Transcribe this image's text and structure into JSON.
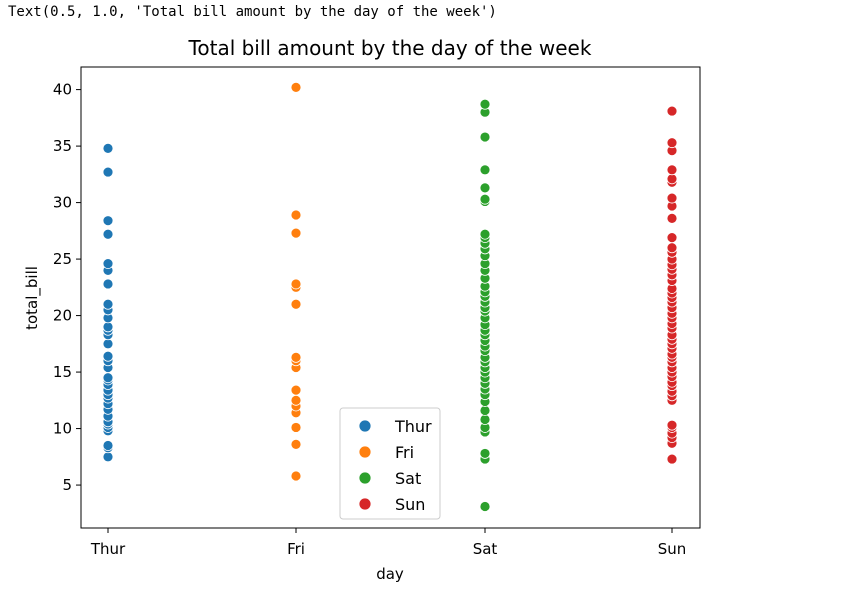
{
  "output_text": "Text(0.5, 1.0, 'Total bill amount by the day of the week')",
  "chart_data": {
    "type": "scatter",
    "title": "Total bill amount by the day of the week",
    "xlabel": "day",
    "ylabel": "total_bill",
    "categories": [
      "Thur",
      "Fri",
      "Sat",
      "Sun"
    ],
    "ylim": [
      1.2,
      42
    ],
    "yticks": [
      5,
      10,
      15,
      20,
      25,
      30,
      35,
      40
    ],
    "grid": false,
    "legend_placement": "lower-center",
    "series": [
      {
        "name": "Thur",
        "color": "#1f77b4",
        "x": "Thur",
        "values": [
          7.5,
          8.3,
          8.5,
          9.8,
          10.1,
          10.4,
          10.6,
          11.1,
          11.7,
          12.2,
          12.7,
          13.0,
          13.4,
          13.9,
          14.3,
          14.5,
          15.4,
          16.0,
          16.4,
          17.5,
          18.3,
          18.7,
          19.0,
          19.8,
          20.5,
          21.0,
          22.8,
          24.0,
          24.6,
          27.2,
          28.4,
          32.7,
          34.8
        ]
      },
      {
        "name": "Fri",
        "color": "#ff7f0e",
        "x": "Fri",
        "values": [
          5.8,
          8.6,
          10.1,
          11.4,
          12.0,
          12.5,
          13.4,
          15.4,
          16.0,
          16.3,
          21.0,
          22.5,
          22.8,
          27.3,
          28.9,
          40.2
        ]
      },
      {
        "name": "Sat",
        "color": "#2ca02c",
        "x": "Sat",
        "values": [
          3.1,
          7.3,
          7.8,
          9.7,
          10.1,
          10.8,
          11.6,
          12.4,
          13.0,
          13.5,
          14.0,
          14.5,
          15.0,
          15.4,
          15.9,
          16.3,
          16.9,
          17.3,
          17.8,
          18.3,
          18.7,
          19.2,
          19.8,
          20.4,
          20.7,
          21.2,
          21.7,
          22.1,
          22.6,
          23.3,
          24.0,
          24.6,
          25.3,
          25.9,
          26.4,
          26.9,
          27.2,
          30.1,
          30.3,
          31.3,
          32.9,
          35.8,
          38.0,
          38.7
        ]
      },
      {
        "name": "Sun",
        "color": "#d62728",
        "x": "Sun",
        "values": [
          7.3,
          8.7,
          9.2,
          9.6,
          10.1,
          10.3,
          12.5,
          12.9,
          13.3,
          13.8,
          14.1,
          14.6,
          15.0,
          15.4,
          15.9,
          16.3,
          16.6,
          17.1,
          17.5,
          17.9,
          18.3,
          18.9,
          19.3,
          19.8,
          20.2,
          20.7,
          21.2,
          21.6,
          22.0,
          22.4,
          23.1,
          23.6,
          24.1,
          24.5,
          25.0,
          25.6,
          26.0,
          26.9,
          28.6,
          29.7,
          30.4,
          31.8,
          32.1,
          32.9,
          34.6,
          35.3,
          38.1
        ]
      }
    ]
  }
}
